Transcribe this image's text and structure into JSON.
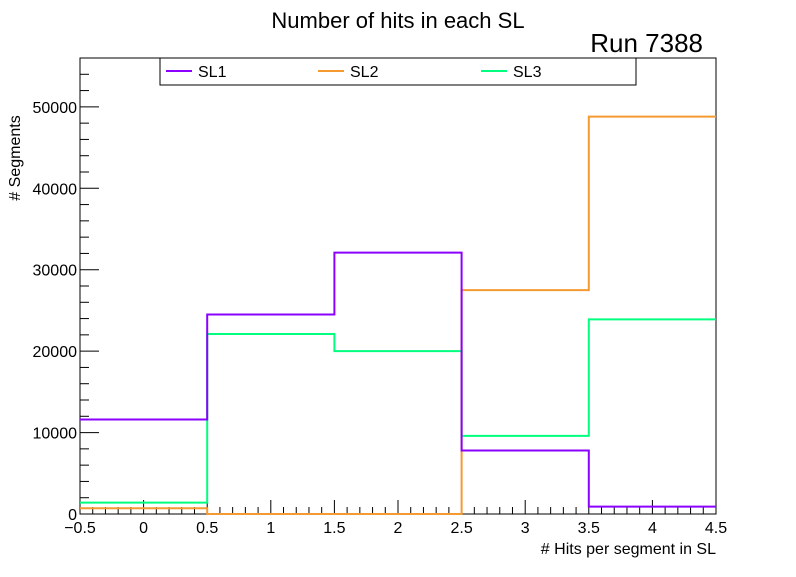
{
  "chart_data": {
    "type": "histogram-step",
    "title": "Number of hits in each SL",
    "annotation": "Run 7388",
    "xlabel": "# Hits per segment in SL",
    "ylabel": "# Segments",
    "xlim": [
      -0.5,
      4.5
    ],
    "ylim": [
      0,
      56000
    ],
    "x_ticks": [
      -0.5,
      0,
      0.5,
      1,
      1.5,
      2,
      2.5,
      3,
      3.5,
      4,
      4.5
    ],
    "x_tick_labels": [
      "−0.5",
      "0",
      "0.5",
      "1",
      "1.5",
      "2",
      "2.5",
      "3",
      "3.5",
      "4",
      "4.5"
    ],
    "y_ticks": [
      0,
      10000,
      20000,
      30000,
      40000,
      50000
    ],
    "y_tick_labels": [
      "0",
      "10000",
      "20000",
      "30000",
      "40000",
      "50000"
    ],
    "bin_edges": [
      -0.5,
      0.5,
      1.5,
      2.5,
      3.5,
      4.5
    ],
    "categories": [
      "0",
      "1",
      "2",
      "3",
      "4"
    ],
    "legend_position": "top",
    "grid": false,
    "series": [
      {
        "name": "SL1",
        "color": "#8b00ff",
        "values": [
          11600,
          24500,
          32100,
          7800,
          900
        ]
      },
      {
        "name": "SL2",
        "color": "#f59a30",
        "values": [
          700,
          0,
          0,
          27500,
          48800
        ]
      },
      {
        "name": "SL3",
        "color": "#00ff7f",
        "values": [
          1400,
          22100,
          20000,
          9600,
          23900
        ]
      }
    ]
  }
}
